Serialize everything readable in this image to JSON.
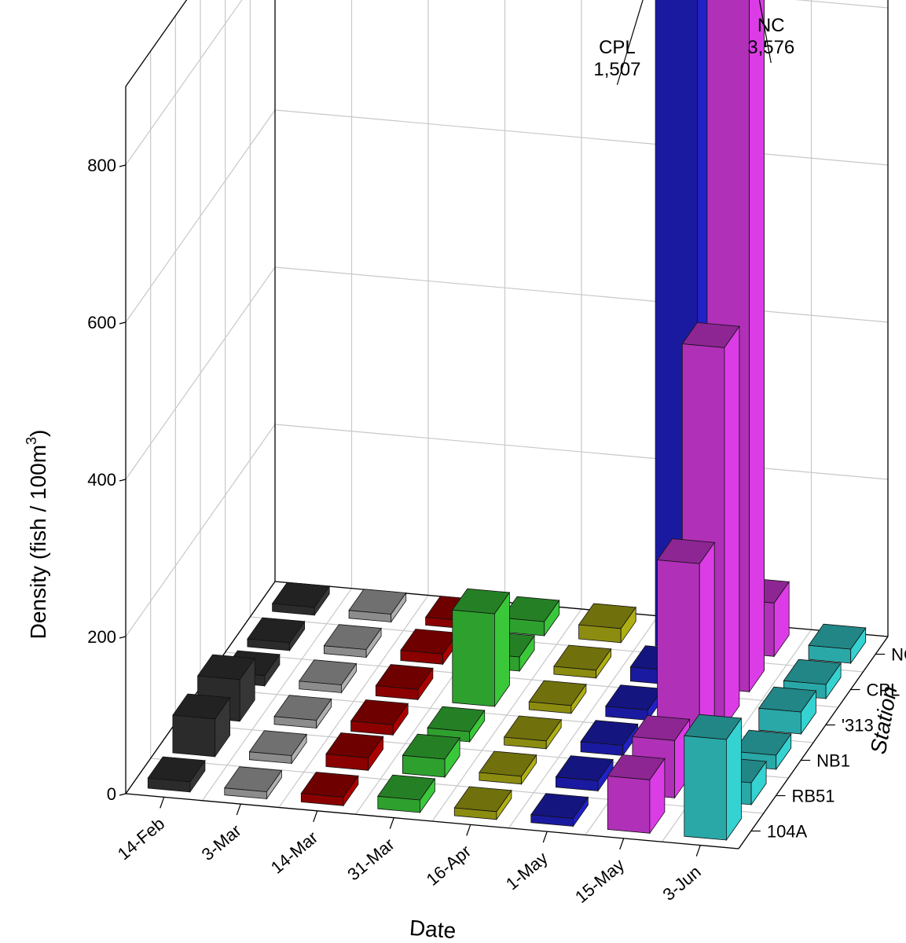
{
  "chart_data": {
    "type": "bar3d",
    "title": "",
    "xlabel": "Date",
    "ylabel": "Station",
    "zlabel": "Density (fish / 100m",
    "zlabel_sup": "3",
    "zlabel_end": ")",
    "dates": [
      "14-Feb",
      "3-Mar",
      "14-Mar",
      "31-Mar",
      "16-Apr",
      "1-May",
      "15-May",
      "3-Jun"
    ],
    "stations": [
      "104A",
      "RB51",
      "NB1",
      "'313",
      "CPL",
      "NC"
    ],
    "zticks": [
      "0",
      "200",
      "400",
      "600",
      "800"
    ],
    "zlim": [
      0,
      900
    ],
    "grid": true,
    "date_colors": [
      "#2b2b2b",
      "#8c8c8c",
      "#8b0000",
      "#2ea02e",
      "#8c8c10",
      "#1a1aa0",
      "#b030b8",
      "#2aa8a8"
    ],
    "values": [
      [
        5,
        40,
        45,
        5,
        2,
        2
      ],
      [
        1,
        2,
        2,
        2,
        2,
        2
      ],
      [
        3,
        8,
        5,
        5,
        5,
        2
      ],
      [
        8,
        15,
        5,
        110,
        10,
        10
      ],
      [
        2,
        2,
        2,
        2,
        2,
        10
      ],
      [
        2,
        5,
        5,
        5,
        10,
        1507
      ],
      [
        60,
        65,
        245,
        475,
        3576,
        60
      ],
      [
        120,
        20,
        10,
        20,
        10,
        10
      ]
    ],
    "annotations": [
      {
        "label": "CPL",
        "value": "1,507",
        "date": "1-May",
        "station": "NC"
      },
      {
        "label": "NC",
        "value": "3,576",
        "date": "15-May",
        "station": "CPL"
      }
    ]
  }
}
